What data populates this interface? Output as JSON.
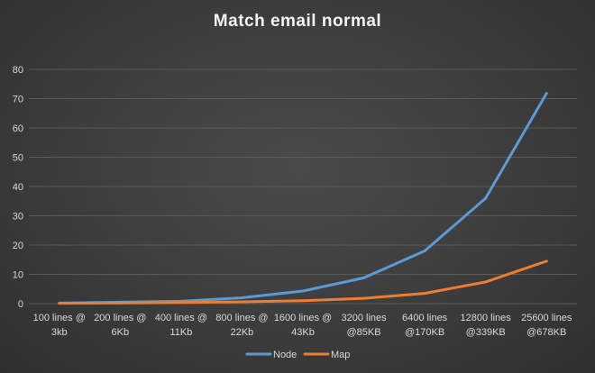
{
  "chart_data": {
    "type": "line",
    "title": "Match email normal",
    "xlabel": "",
    "ylabel": "",
    "ylim": [
      0,
      80
    ],
    "yticks": [
      0,
      10,
      20,
      30,
      40,
      50,
      60,
      70,
      80
    ],
    "grid": true,
    "legend_position": "bottom",
    "categories": [
      [
        "100 lines @",
        "3kb"
      ],
      [
        "200 lines @",
        "6Kb"
      ],
      [
        "400 lines @",
        "11Kb"
      ],
      [
        "800 lines @",
        "22Kb"
      ],
      [
        "1600 lines @",
        "43Kb"
      ],
      [
        "3200 lines",
        "@85KB"
      ],
      [
        "6400 lines",
        "@170KB"
      ],
      [
        "12800 lines",
        "@339KB"
      ],
      [
        "25600 lines",
        "@678KB"
      ]
    ],
    "series": [
      {
        "name": "Node",
        "color": "#5b9bd5",
        "values": [
          0.2,
          0.5,
          0.8,
          2.0,
          4.3,
          8.8,
          18.0,
          36.0,
          71.8
        ]
      },
      {
        "name": "Map",
        "color": "#ed7d31",
        "values": [
          0.1,
          0.2,
          0.4,
          0.6,
          1.0,
          1.8,
          3.5,
          7.4,
          14.5
        ]
      }
    ]
  }
}
